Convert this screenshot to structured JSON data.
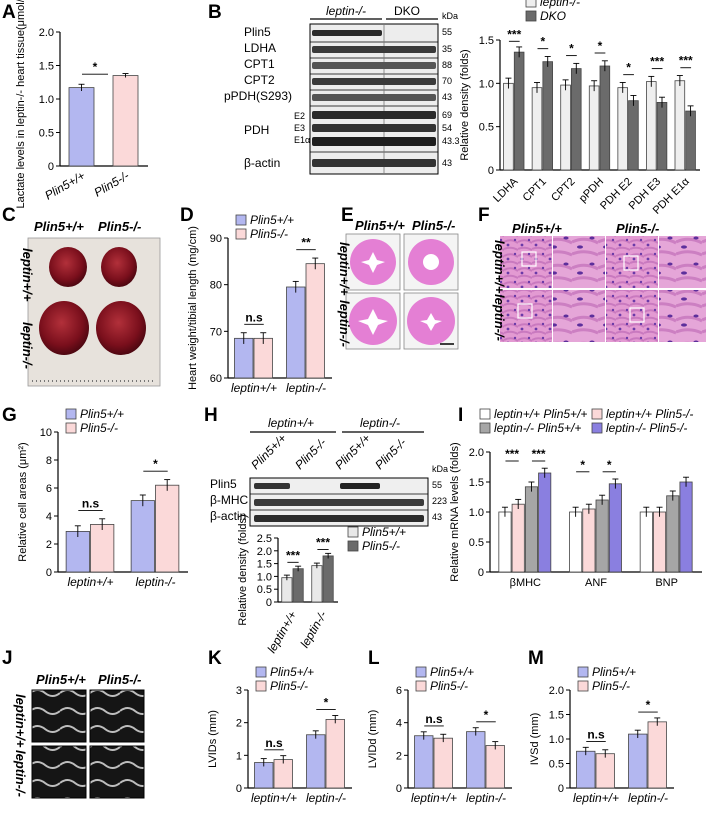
{
  "labels": {
    "A": "A",
    "B": "B",
    "C": "C",
    "D": "D",
    "E": "E",
    "F": "F",
    "G": "G",
    "H": "H",
    "I": "I",
    "J": "J",
    "K": "K",
    "L": "L",
    "M": "M"
  },
  "geno": {
    "wt": "Plin5+/+",
    "ko": "Plin5-/-",
    "lwt": "leptin+/+",
    "lko": "leptin-/-",
    "dko": "DKO",
    "kda": "kDa"
  },
  "colors": {
    "blue": "#b3b7f0",
    "pink": "#fbd9d9",
    "grey": "#e8e8e8",
    "dark": "#6b6b6b",
    "mid": "#a6a6a6",
    "purple": "#8a7fe0",
    "sig": "#000000"
  },
  "blotB": {
    "proteins": [
      "Plin5",
      "LDHA",
      "CPT1",
      "CPT2",
      "pPDH(S293)",
      "PDH",
      "β-actin"
    ],
    "pdh_sub": [
      "E2",
      "E3",
      "E1α"
    ],
    "kda": [
      "55",
      "35",
      "88",
      "70",
      "43",
      "69",
      "54",
      "43.3",
      "43"
    ]
  },
  "blotH": {
    "proteins": [
      "Plin5",
      "β-MHC",
      "β-actin"
    ],
    "kda": [
      "55",
      "223",
      "43"
    ]
  },
  "micro": {
    "scalebar": ""
  },
  "chart_data": [
    {
      "panel": "A",
      "type": "bar",
      "ylabel": "Lactate levels in leptin-/- heart tissue(μmol/g)",
      "categories": [
        "Plin5+/+",
        "Plin5-/-"
      ],
      "values": [
        1.17,
        1.35
      ],
      "errors": [
        0.05,
        0.03
      ],
      "ylim": [
        0,
        2.0
      ],
      "yticks": [
        "0",
        "0.5",
        "1.0",
        "1.5",
        "2.0"
      ],
      "sig": [
        "*"
      ]
    },
    {
      "panel": "B",
      "type": "bar",
      "ylabel": "Relative density (folds)",
      "categories": [
        "LDHA",
        "CPT1",
        "CPT2",
        "pPDH",
        "PDH E2",
        "PDH E3",
        "PDH E1α"
      ],
      "series": [
        {
          "name": "leptin-/-",
          "values": [
            1.0,
            0.95,
            0.98,
            0.97,
            0.95,
            1.02,
            1.03
          ]
        },
        {
          "name": "DKO",
          "values": [
            1.36,
            1.25,
            1.17,
            1.2,
            0.8,
            0.78,
            0.68
          ]
        }
      ],
      "ylim": [
        0,
        1.5
      ],
      "yticks": [
        "0",
        "0.5",
        "1.0",
        "1.5"
      ],
      "sig": [
        "***",
        "*",
        "*",
        "*",
        "*",
        "***",
        "***"
      ]
    },
    {
      "panel": "D",
      "type": "bar",
      "ylabel": "Heart weight/tibial length (mg/cm)",
      "categories": [
        "leptin+/+",
        "leptin-/-"
      ],
      "series": [
        {
          "name": "Plin5+/+",
          "values": [
            68.5,
            79.5
          ]
        },
        {
          "name": "Plin5-/-",
          "values": [
            68.5,
            84.5
          ]
        }
      ],
      "ylim": [
        60,
        90
      ],
      "yticks": [
        "60",
        "70",
        "80",
        "90"
      ],
      "sig": [
        "n.s",
        "**"
      ]
    },
    {
      "panel": "G",
      "type": "bar",
      "ylabel": "Relative cell areas (μm²)",
      "categories": [
        "leptin+/+",
        "leptin-/-"
      ],
      "series": [
        {
          "name": "Plin5+/+",
          "values": [
            2.9,
            5.1
          ]
        },
        {
          "name": "Plin5-/-",
          "values": [
            3.4,
            6.2
          ]
        }
      ],
      "ylim": [
        0,
        10
      ],
      "yticks": [
        "0",
        "2",
        "4",
        "6",
        "8",
        "10"
      ],
      "sig": [
        "n.s",
        "*"
      ]
    },
    {
      "panel": "H",
      "type": "bar",
      "ylabel": "Relative density (folds)",
      "categories": [
        "leptin+/+",
        "leptin-/-"
      ],
      "series": [
        {
          "name": "Plin5+/+",
          "values": [
            0.95,
            1.42
          ]
        },
        {
          "name": "Plin5-/-",
          "values": [
            1.3,
            1.8
          ]
        }
      ],
      "ylim": [
        0,
        2.5
      ],
      "yticks": [
        "0",
        "0.5",
        "1.0",
        "1.5",
        "2.0",
        "2.5"
      ],
      "sig": [
        "***",
        "***"
      ]
    },
    {
      "panel": "I",
      "type": "bar",
      "ylabel": "Relative mRNA levels (folds)",
      "categories": [
        "βMHC",
        "ANF",
        "BNP"
      ],
      "series": [
        {
          "name": "leptin+/+ Plin5+/+",
          "values": [
            1.0,
            1.0,
            1.0
          ]
        },
        {
          "name": "leptin+/+ Plin5-/-",
          "values": [
            1.13,
            1.05,
            1.0
          ]
        },
        {
          "name": "leptin-/- Plin5+/+",
          "values": [
            1.42,
            1.2,
            1.27
          ]
        },
        {
          "name": "leptin-/- Plin5-/-",
          "values": [
            1.65,
            1.47,
            1.5
          ]
        }
      ],
      "ylim": [
        0,
        2.0
      ],
      "yticks": [
        "0",
        "0.5",
        "1.0",
        "1.5",
        "2.0"
      ],
      "sig": [
        "***",
        "***",
        "*",
        "*"
      ]
    },
    {
      "panel": "K",
      "type": "bar",
      "ylabel": "LVIDs (mm)",
      "categories": [
        "leptin+/+",
        "leptin-/-"
      ],
      "series": [
        {
          "name": "Plin5+/+",
          "values": [
            0.78,
            1.63
          ]
        },
        {
          "name": "Plin5-/-",
          "values": [
            0.87,
            2.1
          ]
        }
      ],
      "ylim": [
        0,
        3
      ],
      "yticks": [
        "0",
        "1",
        "2",
        "3"
      ],
      "sig": [
        "n.s",
        "*"
      ]
    },
    {
      "panel": "L",
      "type": "bar",
      "ylabel": "LVIDd (mm)",
      "categories": [
        "leptin+/+",
        "leptin-/-"
      ],
      "series": [
        {
          "name": "Plin5+/+",
          "values": [
            3.2,
            3.45
          ]
        },
        {
          "name": "Plin5-/-",
          "values": [
            3.05,
            2.6
          ]
        }
      ],
      "ylim": [
        0,
        6
      ],
      "yticks": [
        "0",
        "2",
        "4",
        "6"
      ],
      "sig": [
        "n.s",
        "*"
      ]
    },
    {
      "panel": "M",
      "type": "bar",
      "ylabel": "IVSd (mm)",
      "categories": [
        "leptin+/+",
        "leptin-/-"
      ],
      "series": [
        {
          "name": "Plin5+/+",
          "values": [
            0.75,
            1.1
          ]
        },
        {
          "name": "Plin5-/-",
          "values": [
            0.7,
            1.35
          ]
        }
      ],
      "ylim": [
        0,
        2.0
      ],
      "yticks": [
        "0",
        "0.5",
        "1.0",
        "1.5",
        "2.0"
      ],
      "sig": [
        "n.s",
        "*"
      ]
    }
  ]
}
